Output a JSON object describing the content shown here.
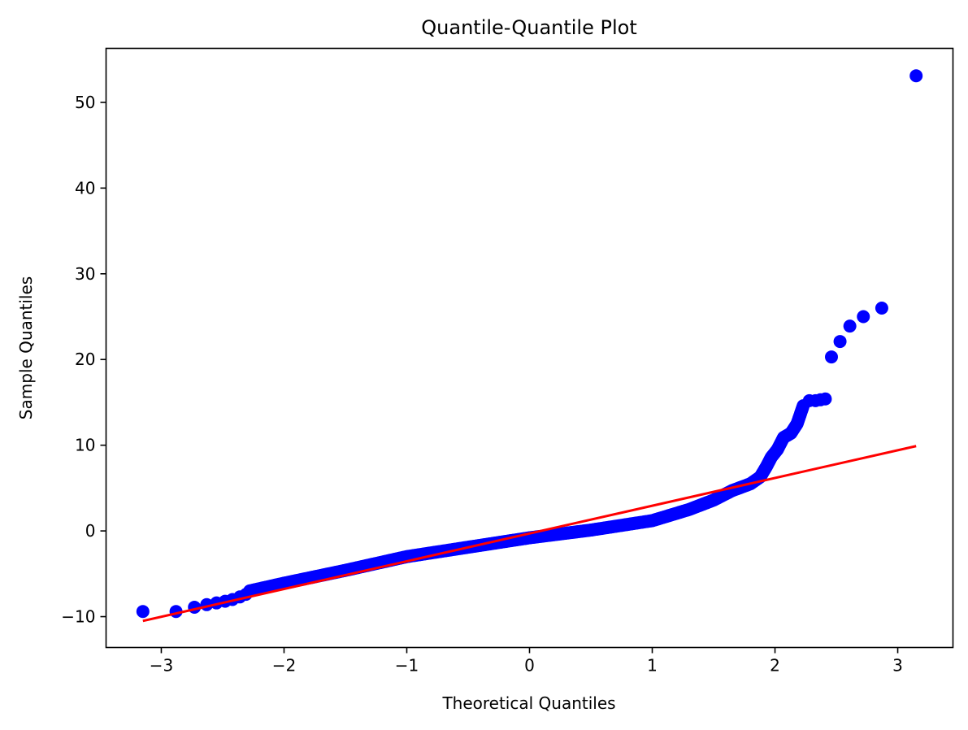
{
  "chart_data": {
    "type": "scatter",
    "title": "Quantile-Quantile Plot",
    "xlabel": "Theoretical Quantiles",
    "ylabel": "Sample Quantiles",
    "xlim": [
      -3.45,
      3.45
    ],
    "ylim": [
      -13.6,
      56.3
    ],
    "xticks": [
      -3,
      -2,
      -1,
      0,
      1,
      2,
      3
    ],
    "yticks": [
      -10,
      0,
      10,
      20,
      30,
      40,
      50
    ],
    "xtick_labels": [
      "−3",
      "−2",
      "−1",
      "0",
      "1",
      "2",
      "3"
    ],
    "ytick_labels": [
      "−10",
      "0",
      "10",
      "20",
      "30",
      "40",
      "50"
    ],
    "grid": false,
    "legend": "none",
    "point_color": "#0000ff",
    "line_color": "#ff0000",
    "reference_line": {
      "x": [
        -3.15,
        3.15
      ],
      "y": [
        -10.5,
        9.9
      ]
    },
    "tail_points": [
      {
        "x": -3.15,
        "y": -9.4
      },
      {
        "x": -2.88,
        "y": -9.4
      },
      {
        "x": -2.73,
        "y": -8.9
      },
      {
        "x": -2.63,
        "y": -8.6
      },
      {
        "x": -2.55,
        "y": -8.4
      },
      {
        "x": -2.48,
        "y": -8.2
      },
      {
        "x": -2.42,
        "y": -8.0
      },
      {
        "x": -2.36,
        "y": -7.7
      },
      {
        "x": -2.31,
        "y": -7.4
      },
      {
        "x": 2.28,
        "y": 15.2
      },
      {
        "x": 2.33,
        "y": 15.2
      },
      {
        "x": 2.37,
        "y": 15.3
      },
      {
        "x": 2.41,
        "y": 15.4
      },
      {
        "x": 2.46,
        "y": 20.3
      },
      {
        "x": 2.53,
        "y": 22.1
      },
      {
        "x": 2.61,
        "y": 23.9
      },
      {
        "x": 2.72,
        "y": 25.0
      },
      {
        "x": 2.87,
        "y": 26.0
      },
      {
        "x": 3.15,
        "y": 53.1
      }
    ],
    "body_curve": [
      {
        "x": -2.28,
        "y": -7.0
      },
      {
        "x": -2.0,
        "y": -6.1
      },
      {
        "x": -1.5,
        "y": -4.6
      },
      {
        "x": -1.0,
        "y": -3.0
      },
      {
        "x": -0.5,
        "y": -1.9
      },
      {
        "x": 0.0,
        "y": -0.8
      },
      {
        "x": 0.5,
        "y": 0.1
      },
      {
        "x": 1.0,
        "y": 1.2
      },
      {
        "x": 1.3,
        "y": 2.5
      },
      {
        "x": 1.5,
        "y": 3.6
      },
      {
        "x": 1.65,
        "y": 4.7
      },
      {
        "x": 1.8,
        "y": 5.5
      },
      {
        "x": 1.88,
        "y": 6.3
      },
      {
        "x": 1.93,
        "y": 7.5
      },
      {
        "x": 1.97,
        "y": 8.6
      },
      {
        "x": 2.02,
        "y": 9.5
      },
      {
        "x": 2.07,
        "y": 10.9
      },
      {
        "x": 2.13,
        "y": 11.4
      },
      {
        "x": 2.18,
        "y": 12.5
      },
      {
        "x": 2.23,
        "y": 14.6
      }
    ]
  }
}
